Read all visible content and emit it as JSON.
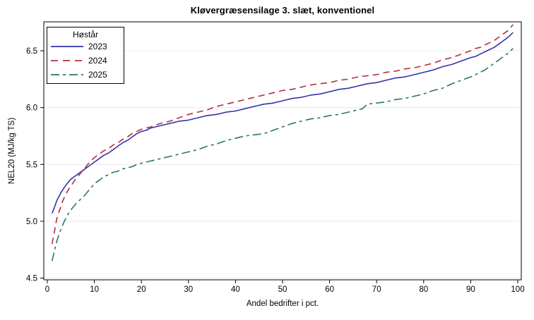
{
  "chart_data": {
    "type": "line",
    "title": "Kløvergræsensilage 3. slæt, konventionel",
    "xlabel": "Andel bedrifter i pct.",
    "ylabel": "NEL20 (MJ/kg TS)",
    "xlim": [
      0,
      100
    ],
    "ylim": [
      4.5,
      6.5
    ],
    "x_tick_labels": [
      "0",
      "10",
      "20",
      "30",
      "40",
      "50",
      "60",
      "70",
      "80",
      "90",
      "100"
    ],
    "x_ticks": [
      0,
      10,
      20,
      30,
      40,
      50,
      60,
      70,
      80,
      90,
      100
    ],
    "y_tick_labels": [
      "4.5",
      "5.0",
      "5.5",
      "6.0",
      "6.5"
    ],
    "y_ticks": [
      4.5,
      5.0,
      5.5,
      6.0,
      6.5
    ],
    "grid": "horizontal-only",
    "grid_color": "#e8e8e8",
    "axis_color": "#000000",
    "legend": {
      "title": "Høstår",
      "position": "top-left-inside"
    },
    "series": [
      {
        "name": "2023",
        "color": "#3333ad",
        "dash": "solid",
        "points": [
          [
            1,
            5.07
          ],
          [
            1.5,
            5.12
          ],
          [
            2,
            5.18
          ],
          [
            2.5,
            5.22
          ],
          [
            3,
            5.26
          ],
          [
            4,
            5.32
          ],
          [
            5,
            5.37
          ],
          [
            6,
            5.4
          ],
          [
            7,
            5.43
          ],
          [
            8,
            5.46
          ],
          [
            9,
            5.49
          ],
          [
            10,
            5.52
          ],
          [
            11,
            5.55
          ],
          [
            12,
            5.58
          ],
          [
            13,
            5.6
          ],
          [
            14,
            5.63
          ],
          [
            15,
            5.66
          ],
          [
            16,
            5.69
          ],
          [
            17,
            5.71
          ],
          [
            18,
            5.74
          ],
          [
            19,
            5.77
          ],
          [
            20,
            5.79
          ],
          [
            21,
            5.8
          ],
          [
            22,
            5.82
          ],
          [
            24,
            5.84
          ],
          [
            26,
            5.86
          ],
          [
            28,
            5.88
          ],
          [
            30,
            5.89
          ],
          [
            32,
            5.91
          ],
          [
            34,
            5.93
          ],
          [
            36,
            5.94
          ],
          [
            38,
            5.96
          ],
          [
            40,
            5.97
          ],
          [
            42,
            5.99
          ],
          [
            44,
            6.01
          ],
          [
            46,
            6.03
          ],
          [
            48,
            6.04
          ],
          [
            50,
            6.06
          ],
          [
            52,
            6.08
          ],
          [
            54,
            6.09
          ],
          [
            56,
            6.11
          ],
          [
            58,
            6.12
          ],
          [
            60,
            6.14
          ],
          [
            62,
            6.16
          ],
          [
            64,
            6.17
          ],
          [
            66,
            6.19
          ],
          [
            68,
            6.21
          ],
          [
            70,
            6.22
          ],
          [
            72,
            6.24
          ],
          [
            74,
            6.26
          ],
          [
            76,
            6.27
          ],
          [
            78,
            6.29
          ],
          [
            80,
            6.31
          ],
          [
            82,
            6.33
          ],
          [
            84,
            6.36
          ],
          [
            86,
            6.38
          ],
          [
            88,
            6.41
          ],
          [
            90,
            6.44
          ],
          [
            91,
            6.45
          ],
          [
            92,
            6.47
          ],
          [
            93,
            6.49
          ],
          [
            94,
            6.51
          ],
          [
            95,
            6.53
          ],
          [
            96,
            6.56
          ],
          [
            97,
            6.59
          ],
          [
            98,
            6.62
          ],
          [
            99,
            6.66
          ]
        ]
      },
      {
        "name": "2024",
        "color": "#b52c3e",
        "dash": "dashed",
        "points": [
          [
            1,
            4.8
          ],
          [
            1.3,
            4.87
          ],
          [
            1.6,
            4.93
          ],
          [
            2,
            5.02
          ],
          [
            2.4,
            5.07
          ],
          [
            2.8,
            5.12
          ],
          [
            3.2,
            5.17
          ],
          [
            3.6,
            5.21
          ],
          [
            4,
            5.24
          ],
          [
            4.5,
            5.28
          ],
          [
            5,
            5.31
          ],
          [
            6,
            5.37
          ],
          [
            7,
            5.42
          ],
          [
            8,
            5.47
          ],
          [
            9,
            5.52
          ],
          [
            10,
            5.56
          ],
          [
            11,
            5.59
          ],
          [
            12,
            5.62
          ],
          [
            13,
            5.64
          ],
          [
            14,
            5.67
          ],
          [
            15,
            5.69
          ],
          [
            16,
            5.72
          ],
          [
            17,
            5.74
          ],
          [
            18,
            5.77
          ],
          [
            19,
            5.79
          ],
          [
            20,
            5.81
          ],
          [
            22,
            5.83
          ],
          [
            24,
            5.86
          ],
          [
            26,
            5.88
          ],
          [
            28,
            5.91
          ],
          [
            30,
            5.94
          ],
          [
            32,
            5.96
          ],
          [
            34,
            5.98
          ],
          [
            36,
            6.01
          ],
          [
            38,
            6.03
          ],
          [
            40,
            6.05
          ],
          [
            42,
            6.07
          ],
          [
            44,
            6.09
          ],
          [
            46,
            6.11
          ],
          [
            48,
            6.13
          ],
          [
            50,
            6.15
          ],
          [
            52,
            6.16
          ],
          [
            54,
            6.18
          ],
          [
            56,
            6.2
          ],
          [
            58,
            6.21
          ],
          [
            60,
            6.22
          ],
          [
            62,
            6.24
          ],
          [
            64,
            6.25
          ],
          [
            66,
            6.27
          ],
          [
            68,
            6.28
          ],
          [
            70,
            6.29
          ],
          [
            72,
            6.31
          ],
          [
            74,
            6.32
          ],
          [
            76,
            6.34
          ],
          [
            78,
            6.35
          ],
          [
            80,
            6.37
          ],
          [
            82,
            6.39
          ],
          [
            84,
            6.42
          ],
          [
            86,
            6.44
          ],
          [
            88,
            6.47
          ],
          [
            90,
            6.5
          ],
          [
            91,
            6.52
          ],
          [
            92,
            6.53
          ],
          [
            93,
            6.55
          ],
          [
            94,
            6.57
          ],
          [
            95,
            6.59
          ],
          [
            96,
            6.62
          ],
          [
            97,
            6.65
          ],
          [
            98,
            6.68
          ],
          [
            99,
            6.73
          ]
        ]
      },
      {
        "name": "2025",
        "color": "#2b7565",
        "dash": "dash-dot",
        "points": [
          [
            1,
            4.65
          ],
          [
            1.4,
            4.72
          ],
          [
            1.8,
            4.79
          ],
          [
            2.2,
            4.85
          ],
          [
            2.6,
            4.9
          ],
          [
            3,
            4.94
          ],
          [
            3.5,
            4.99
          ],
          [
            4,
            5.03
          ],
          [
            4.5,
            5.07
          ],
          [
            5,
            5.1
          ],
          [
            6,
            5.15
          ],
          [
            7,
            5.19
          ],
          [
            8,
            5.23
          ],
          [
            9,
            5.28
          ],
          [
            10,
            5.33
          ],
          [
            11,
            5.36
          ],
          [
            12,
            5.39
          ],
          [
            13,
            5.41
          ],
          [
            14,
            5.43
          ],
          [
            15,
            5.44
          ],
          [
            16,
            5.46
          ],
          [
            17,
            5.47
          ],
          [
            18,
            5.48
          ],
          [
            19,
            5.5
          ],
          [
            20,
            5.51
          ],
          [
            22,
            5.53
          ],
          [
            24,
            5.55
          ],
          [
            26,
            5.57
          ],
          [
            28,
            5.59
          ],
          [
            30,
            5.61
          ],
          [
            32,
            5.63
          ],
          [
            34,
            5.66
          ],
          [
            36,
            5.68
          ],
          [
            38,
            5.71
          ],
          [
            40,
            5.73
          ],
          [
            42,
            5.75
          ],
          [
            44,
            5.76
          ],
          [
            46,
            5.77
          ],
          [
            48,
            5.8
          ],
          [
            50,
            5.83
          ],
          [
            52,
            5.86
          ],
          [
            54,
            5.88
          ],
          [
            56,
            5.9
          ],
          [
            58,
            5.91
          ],
          [
            60,
            5.93
          ],
          [
            62,
            5.94
          ],
          [
            64,
            5.96
          ],
          [
            66,
            5.98
          ],
          [
            67,
            5.99
          ],
          [
            68,
            6.03
          ],
          [
            70,
            6.04
          ],
          [
            72,
            6.05
          ],
          [
            74,
            6.07
          ],
          [
            76,
            6.08
          ],
          [
            78,
            6.1
          ],
          [
            80,
            6.12
          ],
          [
            82,
            6.15
          ],
          [
            84,
            6.17
          ],
          [
            86,
            6.21
          ],
          [
            88,
            6.24
          ],
          [
            90,
            6.27
          ],
          [
            91,
            6.29
          ],
          [
            92,
            6.31
          ],
          [
            93,
            6.33
          ],
          [
            94,
            6.36
          ],
          [
            95,
            6.39
          ],
          [
            96,
            6.42
          ],
          [
            97,
            6.45
          ],
          [
            98,
            6.48
          ],
          [
            99,
            6.52
          ]
        ]
      }
    ]
  }
}
